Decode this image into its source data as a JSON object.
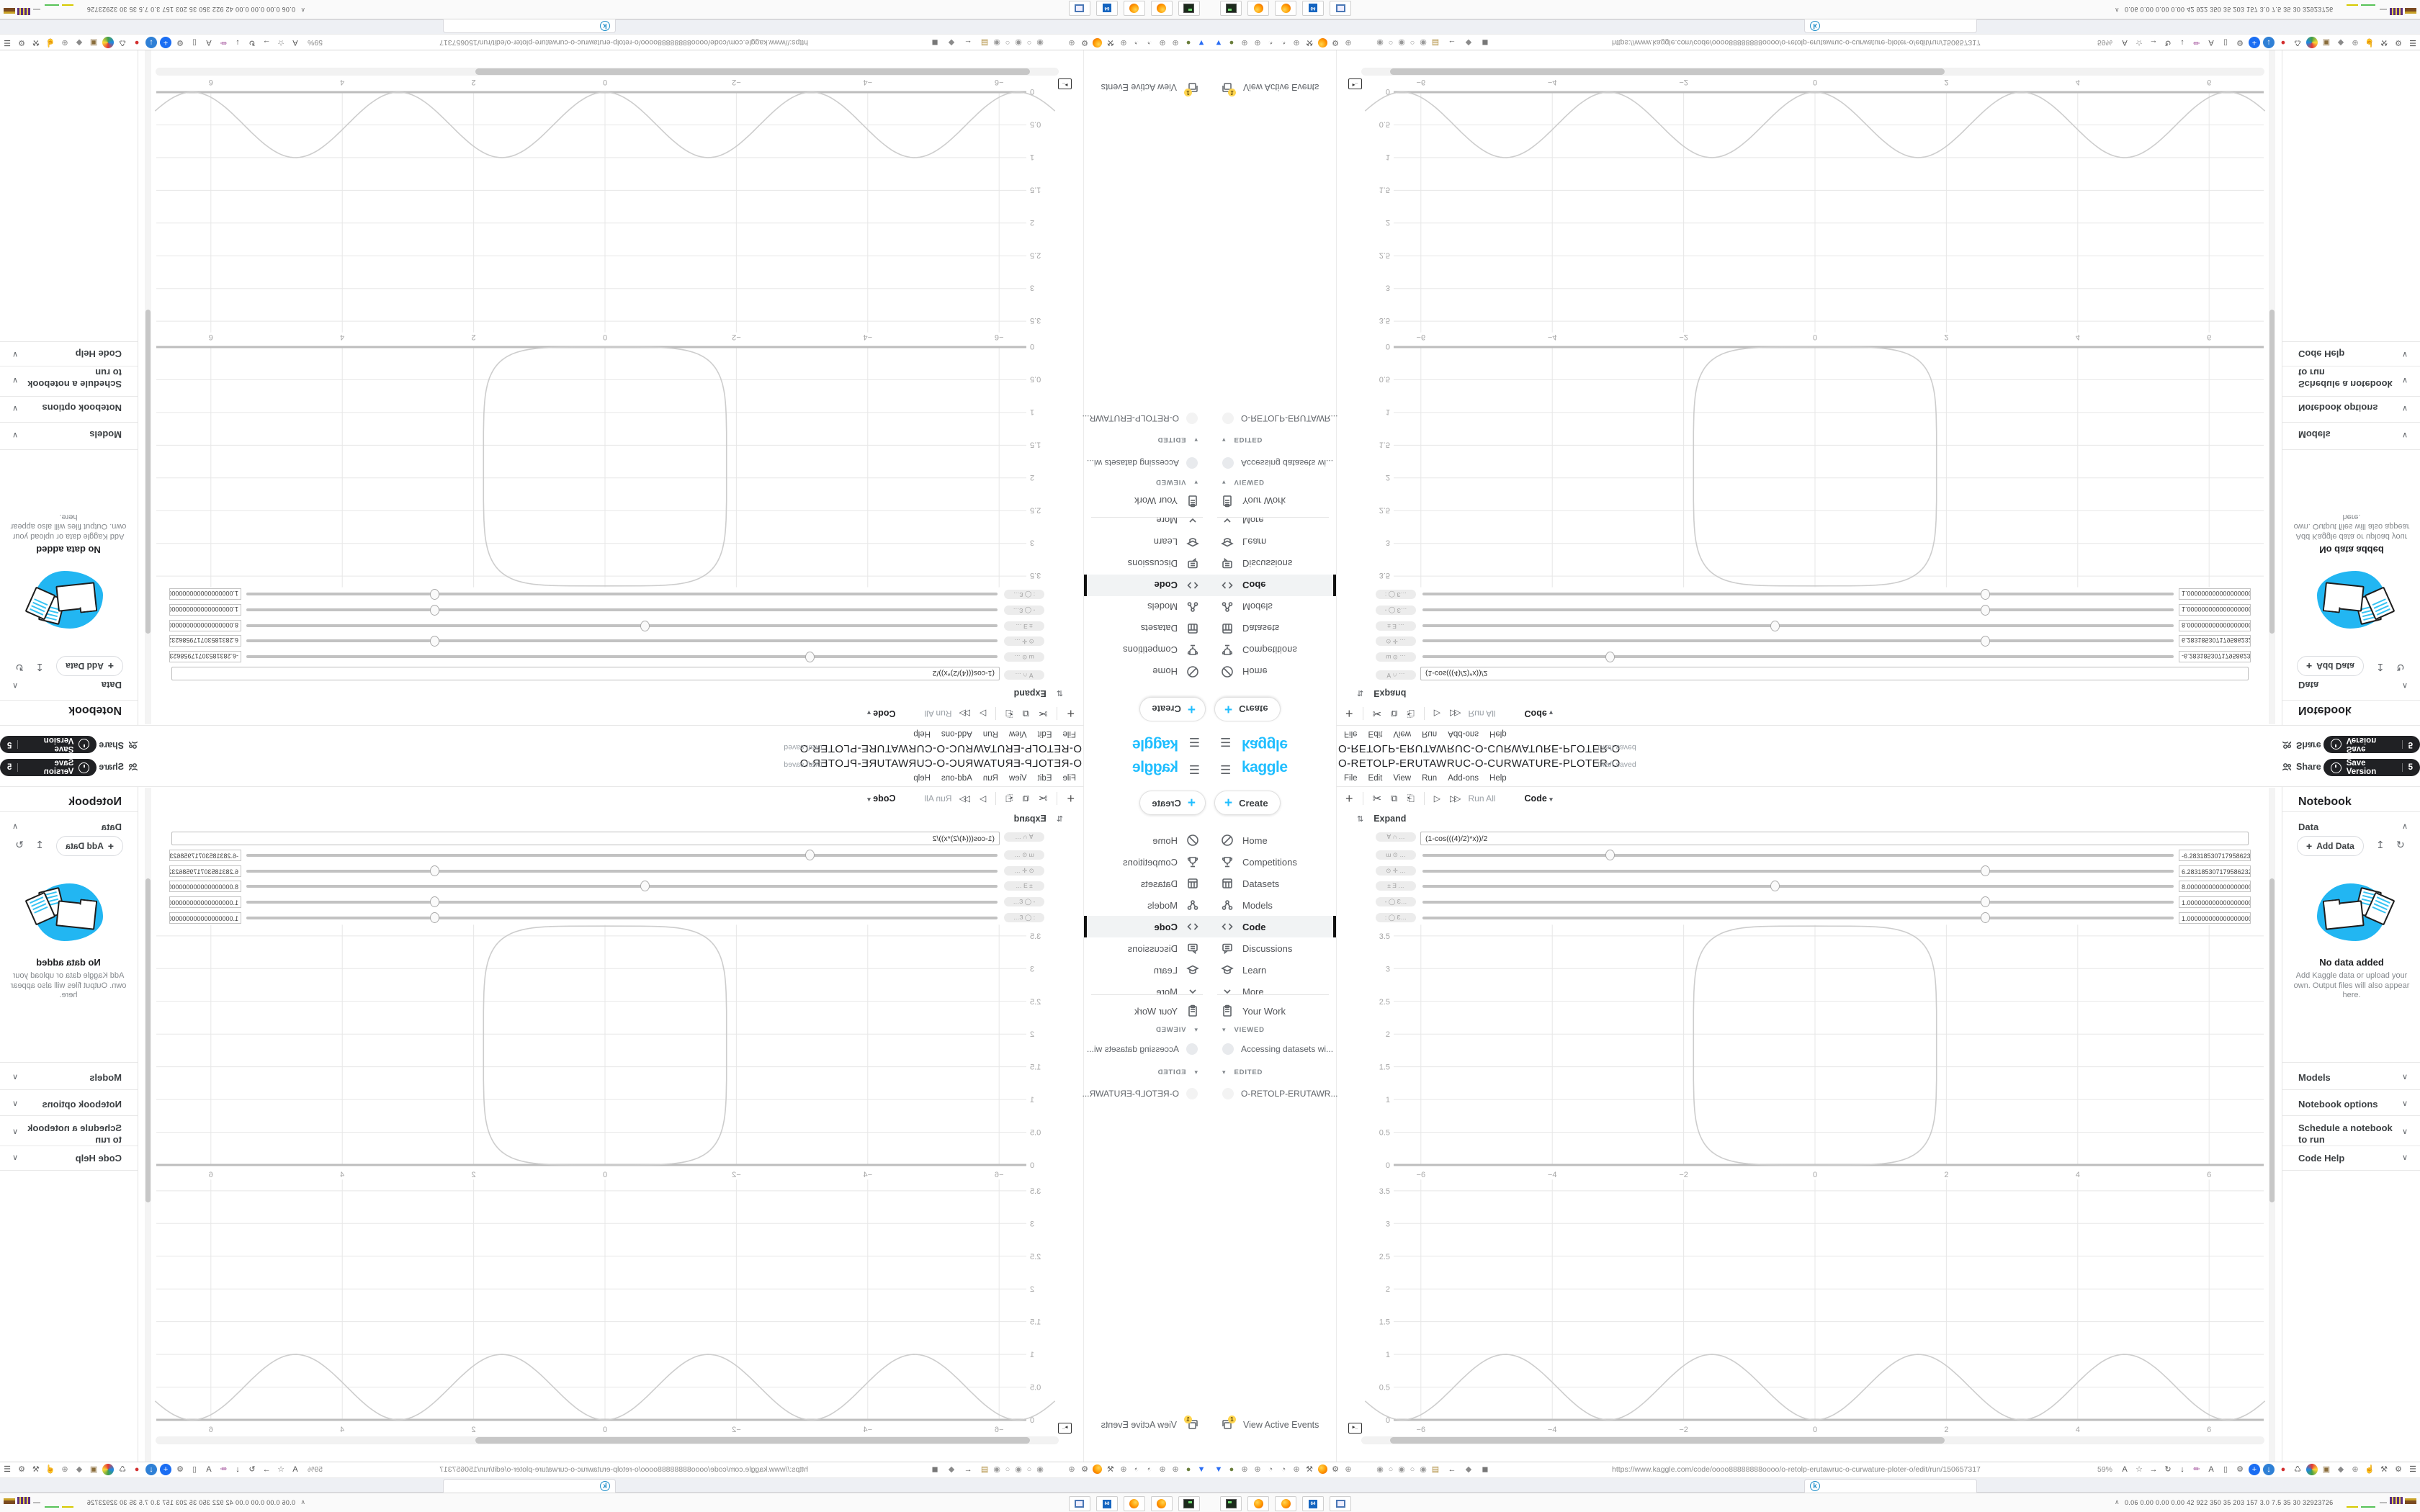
{
  "chart_data": [
    {
      "type": "line",
      "subplot": "top",
      "title": "",
      "xlabel": "",
      "ylabel": "",
      "curve": "superellipse",
      "description": "closed rounded-square curve tangent to y=0, drawn in light gray",
      "center": [
        0,
        1.825
      ],
      "semi_axes": [
        1.85,
        1.825
      ],
      "exponent": 5,
      "xlim": [
        -6.85,
        6.85
      ],
      "ylim": [
        0,
        3.67
      ],
      "xticks": [
        -6,
        -4,
        -2,
        0,
        2,
        4,
        6
      ],
      "yticks": [
        0,
        0.5,
        1,
        1.5,
        2,
        2.5,
        3,
        3.5
      ],
      "grid": true,
      "legend": false
    },
    {
      "type": "line",
      "subplot": "bottom",
      "title": "",
      "xlabel": "",
      "ylabel": "",
      "curve": "sin2",
      "formula": "sin(x)^2",
      "description": "sine-squared wave, zeros at multiples of pi, peaks at 1",
      "xlim": [
        -6.85,
        6.85
      ],
      "ylim": [
        0,
        3.67
      ],
      "xticks": [
        -6,
        -4,
        -2,
        0,
        2,
        4,
        6
      ],
      "yticks": [
        0,
        0.5,
        1,
        1.5,
        2,
        2.5,
        3,
        3.5
      ],
      "grid": true,
      "legend": false
    }
  ],
  "sidebar": {
    "logo": "kaggle",
    "create_label": "Create",
    "items": [
      {
        "label": "Home",
        "icon": "home-icon",
        "active": false
      },
      {
        "label": "Competitions",
        "icon": "trophy-icon",
        "active": false
      },
      {
        "label": "Datasets",
        "icon": "datasets-icon",
        "active": false
      },
      {
        "label": "Models",
        "icon": "models-icon",
        "active": false
      },
      {
        "label": "Code",
        "icon": "code-icon",
        "active": true
      },
      {
        "label": "Discussions",
        "icon": "discussions-icon",
        "active": false
      },
      {
        "label": "Learn",
        "icon": "learn-icon",
        "active": false
      },
      {
        "label": "More",
        "icon": "chevron-down-icon",
        "active": false
      }
    ],
    "your_work": "Your Work",
    "viewed_label": "VIEWED",
    "viewed_item": "Accessing datasets wi...",
    "edited_label": "EDITED",
    "edited_item": "O-RETOLP-ERUTAWR...",
    "active_events_label": "View Active Events",
    "active_events_badge": "1"
  },
  "editor": {
    "title": "O-RETOLP-ERUTAWRUC-O-CURWATURE-PLOTER-O",
    "status": "Draft saved",
    "share_label": "Share",
    "save_version_label": "Save Version",
    "save_version_count": "5",
    "menus": [
      "File",
      "Edit",
      "View",
      "Run",
      "Add-ons",
      "Help"
    ],
    "toolbar": {
      "run_all": "Run All",
      "cell_type": "Code"
    },
    "expand_label": "Expand",
    "widgets": {
      "formula_label": "∀ ∩ …",
      "formula_value": "(1-cos(((4)/2)*x))/2",
      "sliders": [
        {
          "label": "ɯ ⊙ …",
          "value": "-6.283185307179586232",
          "fraction": 0.25
        },
        {
          "label": "⊙ ✛ …",
          "value": "6.2831853071795862320",
          "fraction": 0.75
        },
        {
          "label": "± Ǝ …",
          "value": "8.0000000000000000000",
          "fraction": 0.47
        },
        {
          "label": "- ◯ Ɛ…",
          "value": "1.0000000000000000000",
          "fraction": 0.75
        },
        {
          "label": ": ◯ Ɛ…",
          "value": "1.0000000000000000000",
          "fraction": 0.75
        }
      ]
    }
  },
  "right_panel": {
    "header": "Notebook",
    "add_data_label": "Add Data",
    "empty_title": "No data added",
    "empty_caption_lines": [
      "Add Kaggle data or upload your",
      "own. Output files will also appear",
      "here."
    ],
    "sections": [
      {
        "label": "Data"
      },
      {
        "label": "Models"
      },
      {
        "label": "Notebook options"
      },
      {
        "label": "Schedule a notebook",
        "label2": "to run"
      },
      {
        "label": "Code Help"
      }
    ]
  },
  "chrome": {
    "url": "https://www.kaggle.com/code/oooo88888888oooo/o-retolp-erutawruc-o-curwature-ploter-o/edit/run/150657317",
    "zoom": "59%",
    "tab_favicon": "kaggle-k",
    "left_icons": [
      "funnel-icon",
      "app-circle-icon",
      "globe-icon",
      "globe-icon",
      "gauge-icon",
      "gauge-icon",
      "globe-icon",
      "wrench-icon",
      "firefox-icon",
      "gear-icon",
      "globe-icon"
    ],
    "radio_icons": [
      "radio-on-icon",
      "radio-off-icon",
      "radio-on-icon",
      "radio-off-icon",
      "radio-on-icon"
    ],
    "nav_icons": [
      "folder-icon",
      "back-arrow-icon",
      "shield-icon",
      "lock-icon"
    ],
    "right_icons": [
      "translate-icon",
      "star-icon",
      "forward-arrow-icon",
      "reload-icon",
      "download-icon",
      "brush-icon",
      "translate-icon",
      "device-icon",
      "gear-icon",
      "add-circle-icon",
      "download-circle-icon",
      "record-icon",
      "trash-icon",
      "globe-color-icon",
      "package-icon",
      "shield-icon",
      "globe-icon",
      "thumbs-up-icon",
      "wrench-icon",
      "gear-icon",
      "menu-icon"
    ],
    "taskbar": {
      "apps": [
        "terminal",
        "firefox",
        "firefox",
        "floppy-64",
        "image-viewer"
      ],
      "stats": "0.06 0.00 0.00 0.00 42 922 350 35 203 157 3.0 7.5 35 30 32923726"
    }
  }
}
